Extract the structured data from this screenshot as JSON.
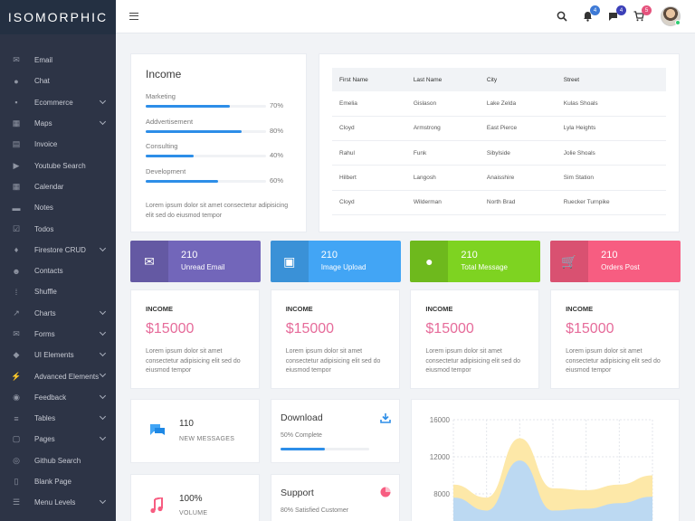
{
  "brand": "ISOMORPHIC",
  "sidebar": {
    "items": [
      {
        "label": "Email",
        "icon": "✉",
        "chevron": false
      },
      {
        "label": "Chat",
        "icon": "●",
        "chevron": false
      },
      {
        "label": "Ecommerce",
        "icon": "▪",
        "chevron": true
      },
      {
        "label": "Maps",
        "icon": "▦",
        "chevron": true
      },
      {
        "label": "Invoice",
        "icon": "▤",
        "chevron": false
      },
      {
        "label": "Youtube Search",
        "icon": "▶",
        "chevron": false
      },
      {
        "label": "Calendar",
        "icon": "▦",
        "chevron": false
      },
      {
        "label": "Notes",
        "icon": "▬",
        "chevron": false
      },
      {
        "label": "Todos",
        "icon": "☑",
        "chevron": false
      },
      {
        "label": "Firestore CRUD",
        "icon": "♦",
        "chevron": true
      },
      {
        "label": "Contacts",
        "icon": "☻",
        "chevron": false
      },
      {
        "label": "Shuffle",
        "icon": "⁞",
        "chevron": false
      },
      {
        "label": "Charts",
        "icon": "↗",
        "chevron": true
      },
      {
        "label": "Forms",
        "icon": "✉",
        "chevron": true
      },
      {
        "label": "UI Elements",
        "icon": "◆",
        "chevron": true
      },
      {
        "label": "Advanced Elements",
        "icon": "⚡",
        "chevron": true
      },
      {
        "label": "Feedback",
        "icon": "◉",
        "chevron": true
      },
      {
        "label": "Tables",
        "icon": "≡",
        "chevron": true
      },
      {
        "label": "Pages",
        "icon": "▢",
        "chevron": true
      },
      {
        "label": "Github Search",
        "icon": "◎",
        "chevron": false
      },
      {
        "label": "Blank Page",
        "icon": "▯",
        "chevron": false
      },
      {
        "label": "Menu Levels",
        "icon": "☰",
        "chevron": true
      }
    ]
  },
  "topbar": {
    "badges": [
      {
        "icon": "bell-icon",
        "count": "4",
        "color": "#3e7ad6"
      },
      {
        "icon": "message-icon",
        "count": "4",
        "color": "#3c40b8"
      },
      {
        "icon": "cart-icon",
        "count": "5",
        "color": "#e5537d"
      }
    ]
  },
  "income": {
    "title": "Income",
    "rows": [
      {
        "label": "Marketing",
        "pct": "70%",
        "value": 70
      },
      {
        "label": "Addvertisement",
        "pct": "80%",
        "value": 80
      },
      {
        "label": "Consulting",
        "pct": "40%",
        "value": 40
      },
      {
        "label": "Development",
        "pct": "60%",
        "value": 60
      }
    ],
    "text": "Lorem ipsum dolor sit amet consectetur adipisicing elit sed do eiusmod tempor"
  },
  "table": {
    "headers": [
      "First Name",
      "Last Name",
      "City",
      "Street"
    ],
    "rows": [
      [
        "Emelia",
        "Gislason",
        "Lake Zelda",
        "Kulas Shoals"
      ],
      [
        "Cloyd",
        "Armstrong",
        "East Pierce",
        "Lyla Heights"
      ],
      [
        "Rahul",
        "Funk",
        "Sibylside",
        "Jolie Shoals"
      ],
      [
        "Hilbert",
        "Langosh",
        "Anaisshire",
        "Sim Station"
      ],
      [
        "Cloyd",
        "Wilderman",
        "North Brad",
        "Ruecker Turnpike"
      ]
    ]
  },
  "stats": [
    {
      "num": "210",
      "label": "Unread Email",
      "color": "#7266ba",
      "icon": "✉"
    },
    {
      "num": "210",
      "label": "Image Upload",
      "color": "#42a5f5",
      "icon": "▣"
    },
    {
      "num": "210",
      "label": "Total Message",
      "color": "#7ed321",
      "icon": "●"
    },
    {
      "num": "210",
      "label": "Orders Post",
      "color": "#f75d81",
      "icon": "🛒"
    }
  ],
  "income_cards": [
    {
      "title": "INCOME",
      "value": "$15000",
      "desc": "Lorem ipsum dolor sit amet consectetur adipisicing elit sed do eiusmod tempor"
    },
    {
      "title": "INCOME",
      "value": "$15000",
      "desc": "Lorem ipsum dolor sit amet consectetur adipisicing elit sed do eiusmod tempor"
    },
    {
      "title": "INCOME",
      "value": "$15000",
      "desc": "Lorem ipsum dolor sit amet consectetur adipisicing elit sed do eiusmod tempor"
    },
    {
      "title": "INCOME",
      "value": "$15000",
      "desc": "Lorem ipsum dolor sit amet consectetur adipisicing elit sed do eiusmod tempor"
    }
  ],
  "widgets": {
    "messages": {
      "num": "110",
      "label": "NEW MESSAGES"
    },
    "volume": {
      "num": "100%",
      "label": "VOLUME"
    },
    "download": {
      "title": "Download",
      "sub": "50% Complete",
      "progress": 50
    },
    "support": {
      "title": "Support",
      "sub": "80% Satisfied Customer"
    }
  },
  "chart_data": {
    "type": "area",
    "title": "",
    "ylim": [
      4000,
      16000
    ],
    "yticks": [
      "16000",
      "12000",
      "8000"
    ],
    "grid": true,
    "series": [
      {
        "values": [
          9000,
          7600,
          14000,
          8600,
          8400,
          9000,
          10000
        ],
        "color": "#fde8a8"
      },
      {
        "values": [
          7600,
          6200,
          11600,
          6200,
          6400,
          7000,
          7700
        ],
        "color": "#bcd9f2"
      }
    ]
  }
}
